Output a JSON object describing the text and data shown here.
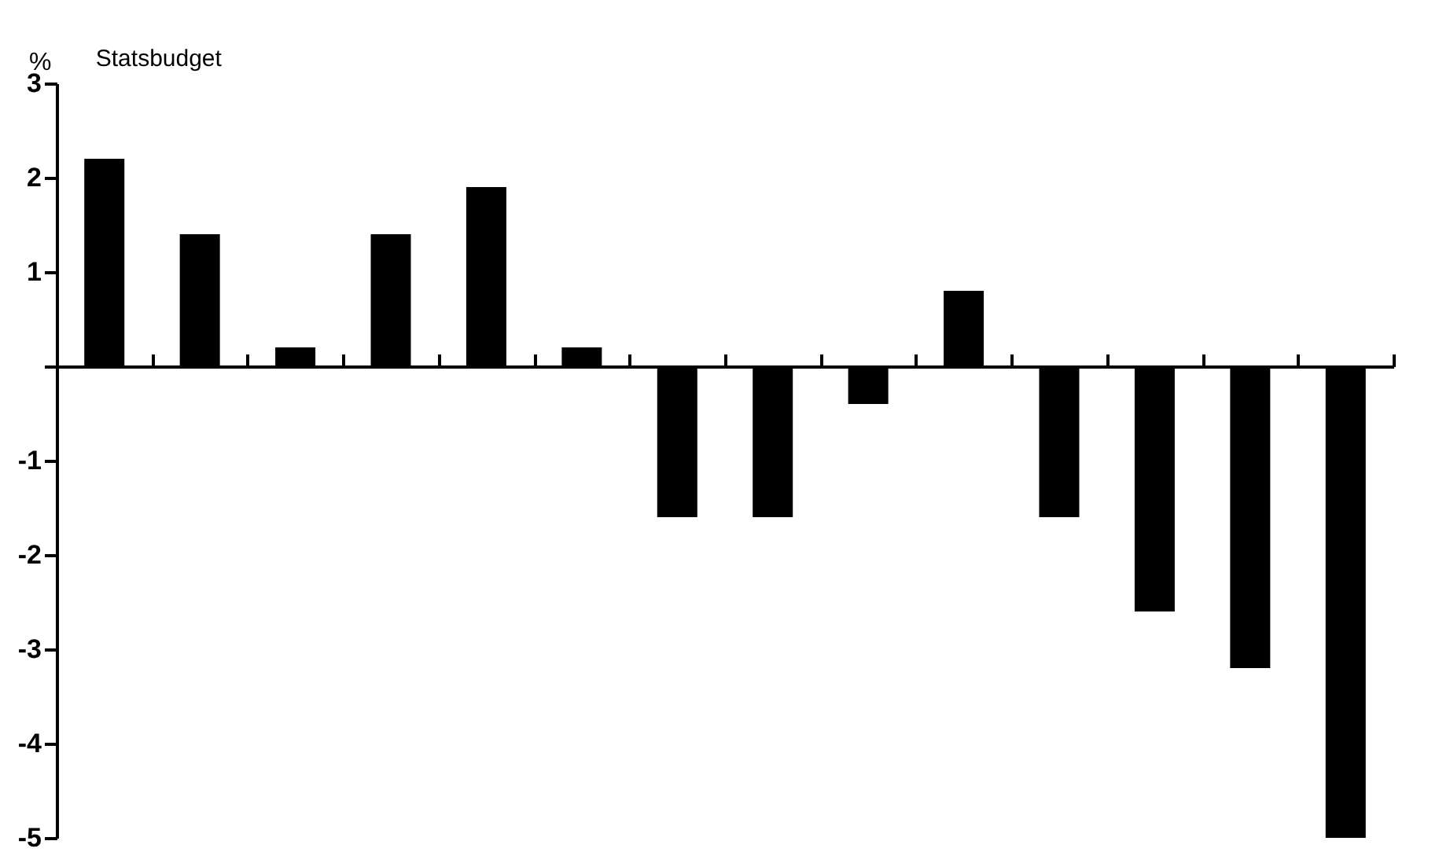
{
  "chart_data": {
    "type": "bar",
    "title": "Statsbudget",
    "ylabel": "%",
    "categories": [
      null,
      null,
      null,
      null,
      null,
      null,
      null,
      null,
      null,
      null,
      null,
      null,
      null,
      null
    ],
    "values": [
      2.2,
      1.4,
      0.2,
      1.4,
      1.9,
      0.2,
      -1.6,
      -1.6,
      -0.4,
      0.8,
      -1.6,
      -2.6,
      -3.2,
      -5
    ],
    "color": "#000000",
    "ylim": [
      -5,
      3
    ],
    "yticks": [
      -5,
      -4,
      -3,
      -2,
      -1,
      {
        "value": 0,
        "label": null
      },
      1,
      2,
      3
    ],
    "tick_labels": "y"
  }
}
